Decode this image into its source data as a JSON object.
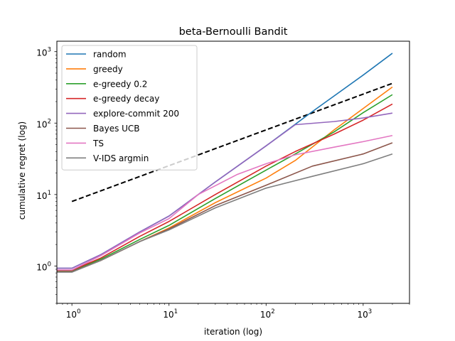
{
  "chart_data": {
    "type": "line",
    "title": "beta-Bernoulli Bandit",
    "xlabel": "iteration (log)",
    "ylabel": "cumulative regret (log)",
    "xscale": "log",
    "yscale": "log",
    "xlim": [
      0.7,
      3000
    ],
    "ylim": [
      0.3,
      1400
    ],
    "xticks": [
      {
        "value": 1,
        "base": "10",
        "exp": "0"
      },
      {
        "value": 10,
        "base": "10",
        "exp": "1"
      },
      {
        "value": 100,
        "base": "10",
        "exp": "2"
      },
      {
        "value": 1000,
        "base": "10",
        "exp": "3"
      }
    ],
    "yticks": [
      {
        "value": 1,
        "base": "10",
        "exp": "0"
      },
      {
        "value": 10,
        "base": "10",
        "exp": "1"
      },
      {
        "value": 100,
        "base": "10",
        "exp": "2"
      },
      {
        "value": 1000,
        "base": "10",
        "exp": "3"
      }
    ],
    "legend_position": "top-left",
    "series": [
      {
        "name": "random",
        "color": "#1f77b4",
        "points": [
          [
            0.7,
            0.93
          ],
          [
            1,
            0.93
          ],
          [
            2,
            1.45
          ],
          [
            5,
            3.0
          ],
          [
            10,
            5.0
          ],
          [
            30,
            15
          ],
          [
            100,
            48
          ],
          [
            300,
            145
          ],
          [
            1000,
            470
          ],
          [
            2000,
            950
          ]
        ]
      },
      {
        "name": "greedy",
        "color": "#ff7f0e",
        "points": [
          [
            0.7,
            0.85
          ],
          [
            1,
            0.85
          ],
          [
            2,
            1.2
          ],
          [
            5,
            2.2
          ],
          [
            10,
            3.4
          ],
          [
            30,
            7.7
          ],
          [
            100,
            17
          ],
          [
            200,
            30
          ],
          [
            500,
            80
          ],
          [
            1000,
            160
          ],
          [
            2000,
            320
          ]
        ]
      },
      {
        "name": "e-greedy 0.2",
        "color": "#2ca02c",
        "points": [
          [
            0.7,
            0.86
          ],
          [
            1,
            0.86
          ],
          [
            2,
            1.25
          ],
          [
            5,
            2.35
          ],
          [
            10,
            3.7
          ],
          [
            30,
            8.8
          ],
          [
            100,
            22
          ],
          [
            200,
            37
          ],
          [
            500,
            75
          ],
          [
            1000,
            140
          ],
          [
            2000,
            250
          ]
        ]
      },
      {
        "name": "e-greedy decay",
        "color": "#d62728",
        "points": [
          [
            0.7,
            0.87
          ],
          [
            1,
            0.87
          ],
          [
            2,
            1.3
          ],
          [
            5,
            2.6
          ],
          [
            10,
            4.2
          ],
          [
            30,
            10
          ],
          [
            100,
            25
          ],
          [
            200,
            40
          ],
          [
            500,
            70
          ],
          [
            1000,
            110
          ],
          [
            2000,
            185
          ]
        ]
      },
      {
        "name": "explore-commit 200",
        "color": "#9467bd",
        "points": [
          [
            0.7,
            0.93
          ],
          [
            1,
            0.93
          ],
          [
            2,
            1.45
          ],
          [
            5,
            3.0
          ],
          [
            10,
            5.0
          ],
          [
            30,
            15
          ],
          [
            100,
            48
          ],
          [
            200,
            95
          ],
          [
            500,
            105
          ],
          [
            1000,
            118
          ],
          [
            2000,
            138
          ]
        ]
      },
      {
        "name": "Bayes UCB",
        "color": "#8c564b",
        "points": [
          [
            0.7,
            0.83
          ],
          [
            1,
            0.83
          ],
          [
            2,
            1.2
          ],
          [
            5,
            2.2
          ],
          [
            10,
            3.3
          ],
          [
            30,
            7
          ],
          [
            100,
            13.5
          ],
          [
            300,
            25
          ],
          [
            1000,
            37
          ],
          [
            2000,
            53
          ]
        ]
      },
      {
        "name": "TS",
        "color": "#e377c2",
        "points": [
          [
            0.7,
            0.88
          ],
          [
            1,
            0.88
          ],
          [
            2,
            1.4
          ],
          [
            5,
            2.9
          ],
          [
            10,
            4.6
          ],
          [
            20,
            10
          ],
          [
            50,
            19
          ],
          [
            100,
            27
          ],
          [
            200,
            36
          ],
          [
            500,
            46
          ],
          [
            1000,
            55
          ],
          [
            2000,
            67
          ]
        ]
      },
      {
        "name": "V-IDS argmin",
        "color": "#7f7f7f",
        "points": [
          [
            0.7,
            0.82
          ],
          [
            1,
            0.82
          ],
          [
            2,
            1.2
          ],
          [
            5,
            2.2
          ],
          [
            10,
            3.2
          ],
          [
            30,
            6.5
          ],
          [
            100,
            12.3
          ],
          [
            300,
            18
          ],
          [
            1000,
            27
          ],
          [
            2000,
            37
          ]
        ]
      }
    ],
    "reference_line": {
      "style": "dashed",
      "color": "#000000",
      "points": [
        [
          1,
          8
        ],
        [
          2000,
          360
        ]
      ]
    }
  }
}
